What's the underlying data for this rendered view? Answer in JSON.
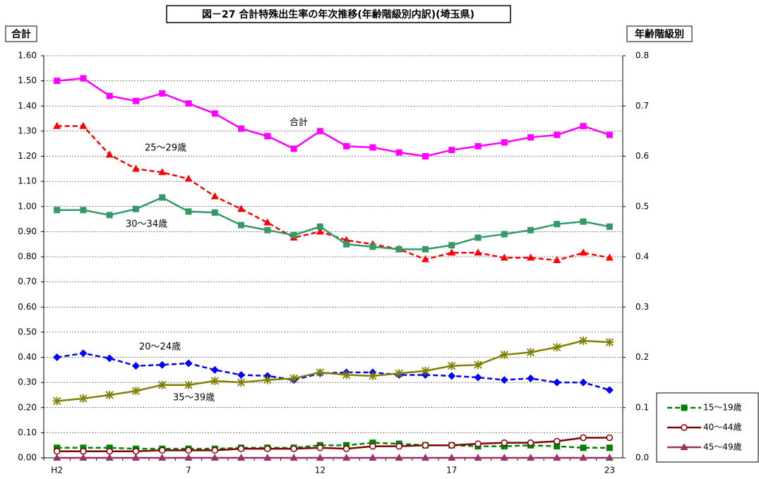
{
  "chart_data": {
    "type": "line",
    "title": "図－27 合計特殊出生率の年次推移(年齢階級別内訳)(埼玉県)",
    "y_label": "合計",
    "y2_label": "年齢階級別",
    "categories": [
      "H2",
      null,
      null,
      null,
      null,
      "7",
      null,
      null,
      null,
      null,
      "12",
      null,
      null,
      null,
      null,
      "17",
      null,
      null,
      null,
      null,
      null,
      "23"
    ],
    "ylim": [
      0,
      1.6
    ],
    "yticks": [
      {
        "value": 0,
        "label": "0.00"
      },
      {
        "value": 0.1,
        "label": "0.10"
      },
      {
        "value": 0.2,
        "label": "0.20"
      },
      {
        "value": 0.3,
        "label": "0.30"
      },
      {
        "value": 0.4,
        "label": "0.40"
      },
      {
        "value": 0.5,
        "label": "0.50"
      },
      {
        "value": 0.6,
        "label": "0.60"
      },
      {
        "value": 0.7,
        "label": "0.70"
      },
      {
        "value": 0.8,
        "label": "0.80"
      },
      {
        "value": 0.9,
        "label": "0.90"
      },
      {
        "value": 1,
        "label": "1.00"
      },
      {
        "value": 1.1,
        "label": "1.10"
      },
      {
        "value": 1.2,
        "label": "1.20"
      },
      {
        "value": 1.3,
        "label": "1.30"
      },
      {
        "value": 1.4,
        "label": "1.40"
      },
      {
        "value": 1.5,
        "label": "1.50"
      },
      {
        "value": 1.6,
        "label": "1.60"
      }
    ],
    "y2lim": [
      0,
      0.8
    ],
    "y2ticks": [
      {
        "value": 0,
        "label": "0.0"
      },
      0.1,
      0.2,
      0.3,
      0.4,
      0.5,
      0.6,
      0.7,
      0.8
    ],
    "grid": true,
    "series": [
      {
        "name": "合計",
        "color": "#ff00ff",
        "marker": "square",
        "dash": false,
        "in_legend": false,
        "values": [
          1.5,
          1.51,
          1.44,
          1.42,
          1.45,
          1.41,
          1.37,
          1.31,
          1.28,
          1.23,
          1.3,
          1.24,
          1.235,
          1.215,
          1.2,
          1.225,
          1.24,
          1.255,
          1.275,
          1.285,
          1.32,
          1.285
        ]
      },
      {
        "name": "25～29歳",
        "color": "#ff0000",
        "marker": "triangle",
        "dash": true,
        "in_legend": false,
        "axis": "y2",
        "values": [
          0.66,
          0.66,
          0.603,
          0.575,
          0.568,
          0.555,
          0.52,
          0.495,
          0.468,
          0.438,
          0.45,
          0.433,
          0.425,
          0.415,
          0.395,
          0.408,
          0.408,
          0.398,
          0.398,
          0.393,
          0.408,
          0.398
        ]
      },
      {
        "name": "30～34歳",
        "color": "#339966",
        "marker": "square",
        "dash": false,
        "in_legend": false,
        "axis": "y2",
        "values": [
          0.493,
          0.493,
          0.483,
          0.495,
          0.518,
          0.49,
          0.488,
          0.463,
          0.453,
          0.443,
          0.46,
          0.425,
          0.42,
          0.415,
          0.415,
          0.423,
          0.438,
          0.445,
          0.453,
          0.465,
          0.47,
          0.46
        ]
      },
      {
        "name": "20～24歳",
        "color": "#0000ff",
        "marker": "diamond",
        "dash": true,
        "in_legend": false,
        "axis": "y2",
        "values": [
          0.2,
          0.208,
          0.198,
          0.183,
          0.185,
          0.188,
          0.175,
          0.165,
          0.163,
          0.155,
          0.168,
          0.17,
          0.17,
          0.165,
          0.165,
          0.163,
          0.16,
          0.155,
          0.158,
          0.15,
          0.15,
          0.135
        ]
      },
      {
        "name": "35～39歳",
        "color": "#808000",
        "marker": "star",
        "dash": false,
        "in_legend": false,
        "axis": "y2",
        "values": [
          0.113,
          0.118,
          0.125,
          0.133,
          0.145,
          0.145,
          0.153,
          0.15,
          0.155,
          0.158,
          0.17,
          0.165,
          0.163,
          0.168,
          0.173,
          0.183,
          0.185,
          0.205,
          0.21,
          0.22,
          0.233,
          0.23
        ]
      },
      {
        "name": "15～19歳",
        "color": "#008000",
        "marker": "square",
        "dash": true,
        "in_legend": true,
        "axis": "y2",
        "values": [
          0.02,
          0.02,
          0.02,
          0.018,
          0.018,
          0.018,
          0.018,
          0.02,
          0.02,
          0.02,
          0.025,
          0.025,
          0.03,
          0.028,
          0.025,
          0.025,
          0.023,
          0.023,
          0.025,
          0.023,
          0.02,
          0.02
        ]
      },
      {
        "name": "40～44歳",
        "color": "#800000",
        "marker": "circle",
        "dash": false,
        "in_legend": true,
        "axis": "y2",
        "values": [
          0.013,
          0.013,
          0.013,
          0.013,
          0.015,
          0.015,
          0.015,
          0.018,
          0.018,
          0.018,
          0.02,
          0.018,
          0.023,
          0.023,
          0.025,
          0.025,
          0.028,
          0.03,
          0.03,
          0.033,
          0.04,
          0.04
        ]
      },
      {
        "name": "45～49歳",
        "color": "#993366",
        "marker": "triangle",
        "dash": false,
        "in_legend": true,
        "axis": "y2",
        "values": [
          0,
          0,
          0,
          0,
          0,
          0,
          0,
          0,
          0,
          0,
          0,
          0,
          0,
          0,
          0,
          0,
          0,
          0,
          0,
          0,
          0,
          0
        ]
      }
    ]
  }
}
